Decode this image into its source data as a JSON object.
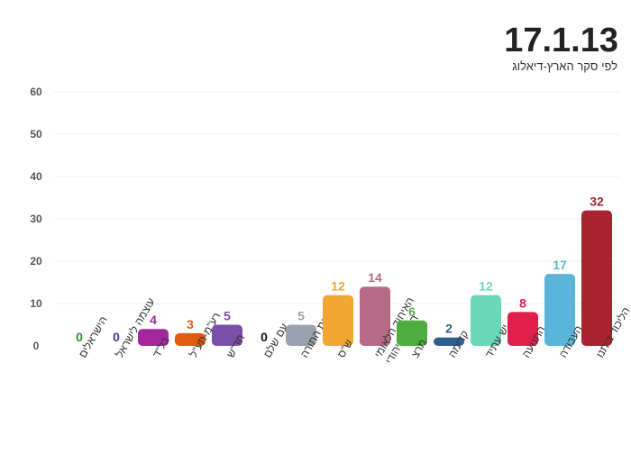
{
  "title": "17.1.13",
  "subtitle": "לפי סקר הארץ-דיאלוג",
  "chart_data": {
    "type": "bar",
    "categories": [
      "הישראלים",
      "עוצמה לישראל",
      "בל\"ד",
      "רע\"מ-תע\"ל",
      "חד\"ש",
      "עם שלם",
      "יהדות התורה",
      "ש\"ס",
      "האיחוד הלאומי הבית היהודי",
      "מרצ",
      "קדימה",
      "יש עתיד",
      "התנועה",
      "העבודה",
      "הליכוד ביתנו"
    ],
    "values": [
      0,
      0,
      4,
      3,
      5,
      0,
      5,
      12,
      14,
      6,
      2,
      12,
      8,
      17,
      32
    ],
    "colors": [
      "#2e8b3e",
      "#3a3f8f",
      "#a3279a",
      "#e05a10",
      "#7a4fa8",
      "#111111",
      "#9aa3ad",
      "#f0a830",
      "#b56a86",
      "#4cae3c",
      "#2f5f8f",
      "#6ad8b8",
      "#e0204a",
      "#5bb5d8",
      "#a8232e"
    ],
    "yticks": [
      0,
      10,
      20,
      30,
      40,
      50,
      60
    ],
    "ylim": [
      0,
      60
    ],
    "xlabel": "",
    "ylabel": "",
    "grid": true
  }
}
